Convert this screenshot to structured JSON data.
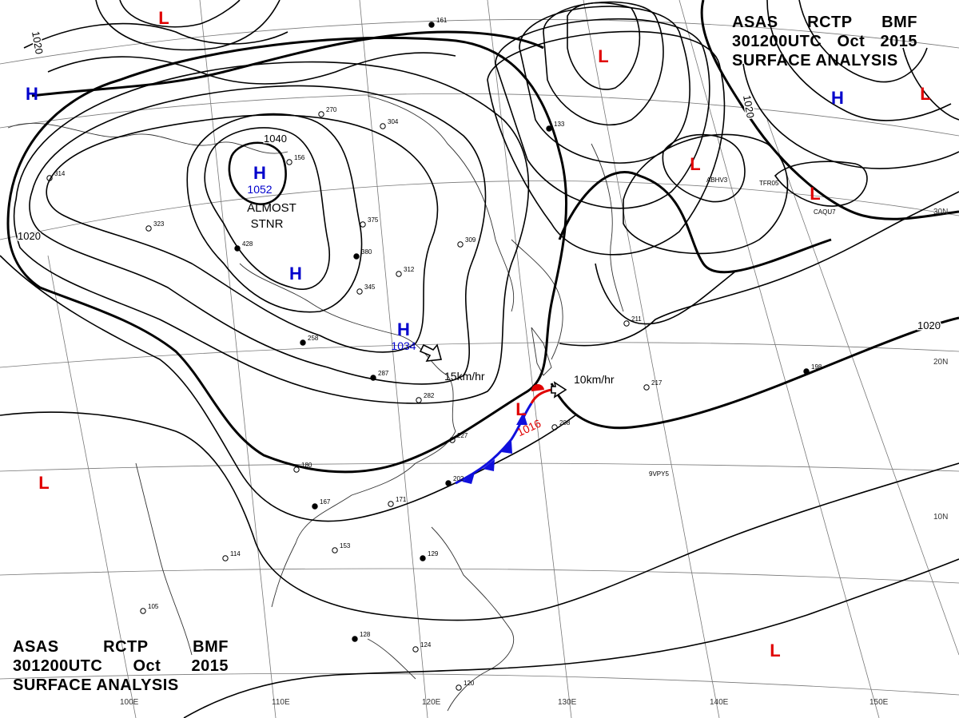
{
  "header": {
    "line1": [
      "ASAS",
      "RCTP",
      "BMF"
    ],
    "line2": [
      "301200UTC",
      "Oct",
      "2015"
    ],
    "line3": "SURFACE ANALYSIS"
  },
  "colors": {
    "high": "#0000cc",
    "low": "#e00000",
    "isobar": "#000000",
    "grid": "#888888"
  },
  "isobar_labels": [
    "1040",
    "1020",
    "1020",
    "1020",
    "1020"
  ],
  "pressure_systems": [
    {
      "type": "H",
      "value": "1052"
    },
    {
      "type": "H",
      "value": ""
    },
    {
      "type": "H",
      "value": "1034"
    },
    {
      "type": "H",
      "value": ""
    },
    {
      "type": "H",
      "value": ""
    },
    {
      "type": "L",
      "value": ""
    },
    {
      "type": "L",
      "value": ""
    },
    {
      "type": "L",
      "value": ""
    },
    {
      "type": "L",
      "value": ""
    },
    {
      "type": "L",
      "value": ""
    },
    {
      "type": "L",
      "value": "1016"
    },
    {
      "type": "L",
      "value": ""
    },
    {
      "type": "L",
      "value": ""
    }
  ],
  "annotations": {
    "stnr": [
      "ALMOST",
      "STNR"
    ],
    "motion_high": "15km/hr",
    "motion_low": "10km/hr"
  },
  "latitude_labels": [
    "30N",
    "20N",
    "10N"
  ],
  "longitude_labels": [
    "100E",
    "110E",
    "120E",
    "130E",
    "140E",
    "150E"
  ],
  "station_labels": [
    "9VPY5",
    "TFR05",
    "ABHV3",
    "CAQU7"
  ],
  "station_data": [
    "161",
    "304",
    "375",
    "380",
    "312",
    "345",
    "287",
    "282",
    "227",
    "202",
    "208",
    "217",
    "198",
    "105",
    "156",
    "129",
    "120",
    "124",
    "128",
    "114",
    "153",
    "167",
    "171",
    "180",
    "258",
    "323",
    "314",
    "428",
    "270",
    "309",
    "133",
    "211"
  ]
}
